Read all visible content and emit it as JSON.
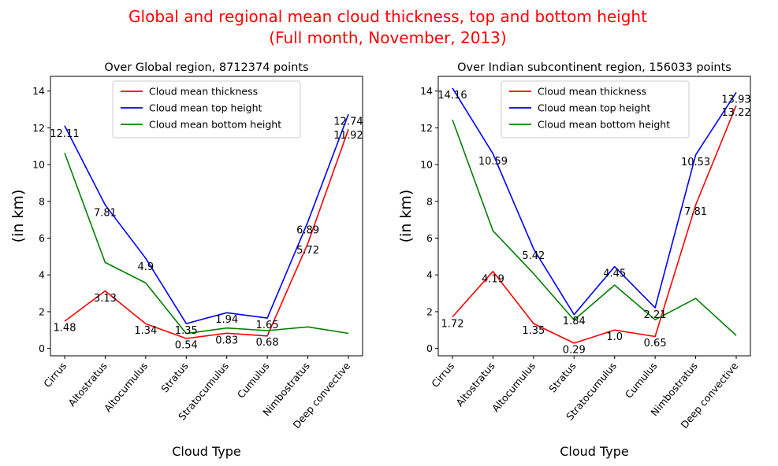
{
  "figure": {
    "title_line1": "Global and regional mean cloud thickness, top and bottom height",
    "title_line2": "(Full month, November, 2013)",
    "title_color": "#ff0000"
  },
  "chart_data": [
    {
      "type": "line",
      "title": "Over Global region, 8712374 points",
      "xlabel": "Cloud Type",
      "ylabel": "(in km)",
      "categories": [
        "Cirrus",
        "Altostratus",
        "Altocumulus",
        "Stratus",
        "Stratocumulus",
        "Cumulus",
        "Nimbostratus",
        "Deep convective"
      ],
      "ylim": [
        -0.4,
        14.8
      ],
      "yticks": [
        "0",
        "2",
        "4",
        "6",
        "8",
        "10",
        "12",
        "14"
      ],
      "legend_position": "top-center",
      "grid": false,
      "series": [
        {
          "name": "Cloud mean thickness",
          "color": "#ff0000",
          "values": [
            1.48,
            3.13,
            1.34,
            0.54,
            0.83,
            0.68,
            5.72,
            11.92
          ]
        },
        {
          "name": "Cloud mean top height",
          "color": "#0000ff",
          "values": [
            12.11,
            7.81,
            4.9,
            1.35,
            1.94,
            1.65,
            6.89,
            12.74
          ]
        },
        {
          "name": "Cloud mean bottom height",
          "color": "#008000",
          "values": [
            10.63,
            4.68,
            3.56,
            0.81,
            1.11,
            0.97,
            1.17,
            0.82
          ]
        }
      ],
      "annotations": [
        {
          "text": "12.11",
          "x": 0,
          "y": 11.7
        },
        {
          "text": "1.48",
          "x": 0,
          "y": 1.15
        },
        {
          "text": "7.81",
          "x": 1,
          "y": 7.4
        },
        {
          "text": "3.13",
          "x": 1,
          "y": 2.75
        },
        {
          "text": "4.9",
          "x": 2,
          "y": 4.45
        },
        {
          "text": "1.34",
          "x": 2,
          "y": 1.0
        },
        {
          "text": "1.35",
          "x": 3,
          "y": 1.0
        },
        {
          "text": "0.54",
          "x": 3,
          "y": 0.2
        },
        {
          "text": "1.94",
          "x": 4,
          "y": 1.6
        },
        {
          "text": "0.83",
          "x": 4,
          "y": 0.45
        },
        {
          "text": "1.65",
          "x": 5,
          "y": 1.3
        },
        {
          "text": "0.68",
          "x": 5,
          "y": 0.35
        },
        {
          "text": "6.89",
          "x": 6,
          "y": 6.45
        },
        {
          "text": "5.72",
          "x": 6,
          "y": 5.35
        },
        {
          "text": "12.74",
          "x": 7,
          "y": 12.35
        },
        {
          "text": "11.92",
          "x": 7,
          "y": 11.6
        }
      ]
    },
    {
      "type": "line",
      "title": "Over Indian subcontinent region, 156033 points",
      "xlabel": "Cloud Type",
      "ylabel": "(in km)",
      "categories": [
        "Cirrus",
        "Altostratus",
        "Altocumulus",
        "Stratus",
        "Stratocumulus",
        "Cumulus",
        "Nimbostratus",
        "Deep convective"
      ],
      "ylim": [
        -0.4,
        14.8
      ],
      "yticks": [
        "0",
        "2",
        "4",
        "6",
        "8",
        "10",
        "12",
        "14"
      ],
      "legend_position": "top-center",
      "grid": false,
      "series": [
        {
          "name": "Cloud mean thickness",
          "color": "#ff0000",
          "values": [
            1.72,
            4.19,
            1.35,
            0.29,
            1.0,
            0.65,
            7.81,
            13.22
          ]
        },
        {
          "name": "Cloud mean top height",
          "color": "#0000ff",
          "values": [
            14.16,
            10.59,
            5.42,
            1.84,
            4.45,
            2.21,
            10.53,
            13.93
          ]
        },
        {
          "name": "Cloud mean bottom height",
          "color": "#008000",
          "values": [
            12.44,
            6.4,
            4.07,
            1.55,
            3.45,
            1.56,
            2.72,
            0.71
          ]
        }
      ],
      "annotations": [
        {
          "text": "14.16",
          "x": 0,
          "y": 13.8
        },
        {
          "text": "1.72",
          "x": 0,
          "y": 1.35
        },
        {
          "text": "10.59",
          "x": 1,
          "y": 10.2
        },
        {
          "text": "4.19",
          "x": 1,
          "y": 3.8
        },
        {
          "text": "5.42",
          "x": 2,
          "y": 5.05
        },
        {
          "text": "1.35",
          "x": 2,
          "y": 1.0
        },
        {
          "text": "1.84",
          "x": 3,
          "y": 1.5
        },
        {
          "text": "0.29",
          "x": 3,
          "y": -0.05
        },
        {
          "text": "4.45",
          "x": 4,
          "y": 4.1
        },
        {
          "text": "1.0",
          "x": 4,
          "y": 0.65
        },
        {
          "text": "2.21",
          "x": 5,
          "y": 1.85
        },
        {
          "text": "0.65",
          "x": 5,
          "y": 0.3
        },
        {
          "text": "10.53",
          "x": 6,
          "y": 10.15
        },
        {
          "text": "7.81",
          "x": 6,
          "y": 7.45
        },
        {
          "text": "13.93",
          "x": 7,
          "y": 13.55
        },
        {
          "text": "13.22",
          "x": 7,
          "y": 12.85
        }
      ]
    }
  ]
}
